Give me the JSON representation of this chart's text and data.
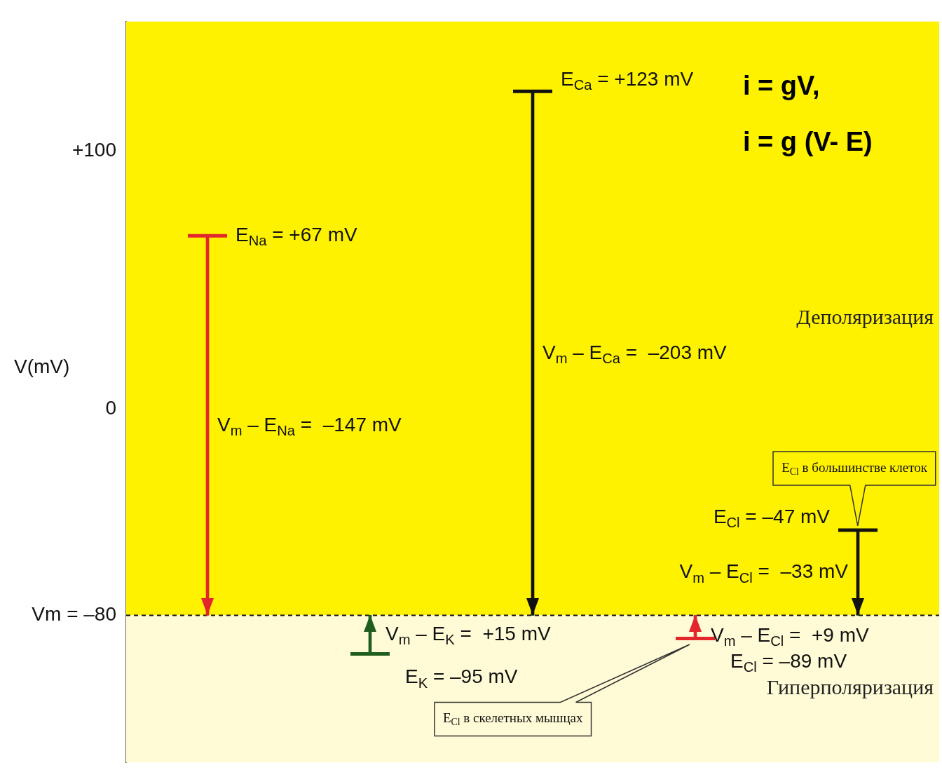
{
  "chart_data": {
    "type": "bar",
    "categories": [
      null,
      null,
      null,
      null,
      null
    ],
    "base": [
      67,
      -95,
      123,
      -89,
      -47
    ],
    "values": [
      -147,
      15,
      -203,
      9,
      -33
    ],
    "colors": [
      "#e3262c",
      "#1f5e1f",
      "#111111",
      "#e3262c",
      "#111111"
    ],
    "ylabel": "V(mV)",
    "ylim": [
      -137,
      150
    ],
    "yticks": [
      {
        "value": 100,
        "label": "+100"
      },
      0,
      {
        "value": -80,
        "label": "Vm = –80"
      }
    ],
    "ref_lines": [
      {
        "axis": "y",
        "value": -80,
        "line_style": "dashed",
        "color": "#111111"
      }
    ],
    "bands": [
      {
        "axis": "y",
        "from": -80,
        "to": 150,
        "label": "Деполяризация",
        "color": "#fff200"
      },
      {
        "axis": "y",
        "from": -137,
        "to": -80,
        "label": "Гиперполяризация",
        "color": "#fffbd6"
      }
    ],
    "annotations": [
      "E$_{Na}$ = +67 mV",
      "E$_{K}$ = –95 mV",
      "E$_{Ca}$ = +123 mV",
      "E$_{Cl}$ = –89 mV",
      "E$_{Cl}$ = –47 mV",
      "V$_{m}$ – E$_{Na}$ =  –147 mV",
      "V$_{m}$ – E$_{K}$ =  +15 mV",
      "V$_{m}$ – E$_{Ca}$ =  –203 mV",
      "V$_{m}$ – E$_{Cl}$ =  +9 mV",
      "V$_{m}$ – E$_{Cl}$ =  –33 mV",
      "i = gV,",
      "i = g (V- E)",
      "E$_{Cl}$ в большинстве клеток",
      "E$_{Cl}$ в скелетных мышцах"
    ],
    "tick_labels": "y",
    "legend": false
  }
}
